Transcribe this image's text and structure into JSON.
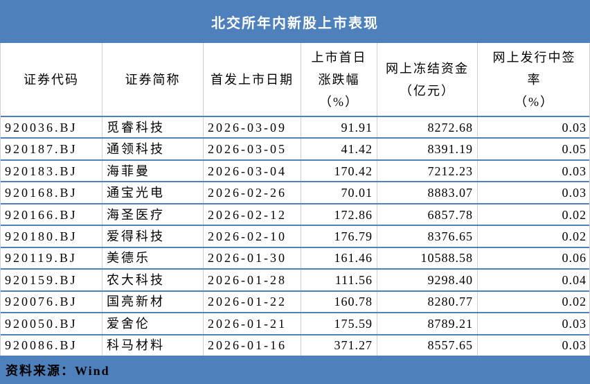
{
  "chart_data": {
    "type": "table",
    "title": "北交所年内新股上市表现",
    "source_label": "资料来源：Wind",
    "columns": [
      {
        "key": "code",
        "label": "证券代码",
        "lines": [
          "证券代码"
        ]
      },
      {
        "key": "name",
        "label": "证券简称",
        "lines": [
          "证券简称"
        ]
      },
      {
        "key": "date",
        "label": "首发上市日期",
        "lines": [
          "首发上市日期"
        ]
      },
      {
        "key": "chg",
        "label": "上市首日涨跌幅（%）",
        "lines": [
          "上市首日",
          "涨跌幅",
          "（%）"
        ]
      },
      {
        "key": "frozen",
        "label": "网上冻结资金（亿元）",
        "lines": [
          "网上冻结资金",
          "（亿元）"
        ]
      },
      {
        "key": "lottery",
        "label": "网上发行中签率（%）",
        "lines": [
          "网上发行中签",
          "率",
          "（%）"
        ]
      }
    ],
    "rows": [
      {
        "code": "920036.BJ",
        "name": "觅睿科技",
        "date": "2026-03-09",
        "chg": "91.91",
        "frozen": "8272.68",
        "lottery": "0.03"
      },
      {
        "code": "920187.BJ",
        "name": "通领科技",
        "date": "2026-03-05",
        "chg": "41.42",
        "frozen": "8391.19",
        "lottery": "0.05"
      },
      {
        "code": "920183.BJ",
        "name": "海菲曼",
        "date": "2026-03-04",
        "chg": "170.42",
        "frozen": "7212.23",
        "lottery": "0.03"
      },
      {
        "code": "920168.BJ",
        "name": "通宝光电",
        "date": "2026-02-26",
        "chg": "70.01",
        "frozen": "8883.07",
        "lottery": "0.03"
      },
      {
        "code": "920166.BJ",
        "name": "海圣医疗",
        "date": "2026-02-12",
        "chg": "172.86",
        "frozen": "6857.78",
        "lottery": "0.02"
      },
      {
        "code": "920180.BJ",
        "name": "爱得科技",
        "date": "2026-02-10",
        "chg": "176.79",
        "frozen": "8376.65",
        "lottery": "0.02"
      },
      {
        "code": "920119.BJ",
        "name": "美德乐",
        "date": "2026-01-30",
        "chg": "161.46",
        "frozen": "10588.58",
        "lottery": "0.06"
      },
      {
        "code": "920159.BJ",
        "name": "农大科技",
        "date": "2026-01-28",
        "chg": "111.56",
        "frozen": "9298.40",
        "lottery": "0.04"
      },
      {
        "code": "920076.BJ",
        "name": "国亮新材",
        "date": "2026-01-22",
        "chg": "160.78",
        "frozen": "8280.77",
        "lottery": "0.02"
      },
      {
        "code": "920050.BJ",
        "name": "爱舍伦",
        "date": "2026-01-21",
        "chg": "175.59",
        "frozen": "8789.21",
        "lottery": "0.03"
      },
      {
        "code": "920086.BJ",
        "name": "科马材料",
        "date": "2026-01-16",
        "chg": "371.27",
        "frozen": "8557.65",
        "lottery": "0.03"
      }
    ]
  },
  "colors": {
    "accent_blue": "#4e80bc",
    "divider_gray": "#cfcfcf",
    "title_text": "#ffffff",
    "body_text": "#000000"
  }
}
